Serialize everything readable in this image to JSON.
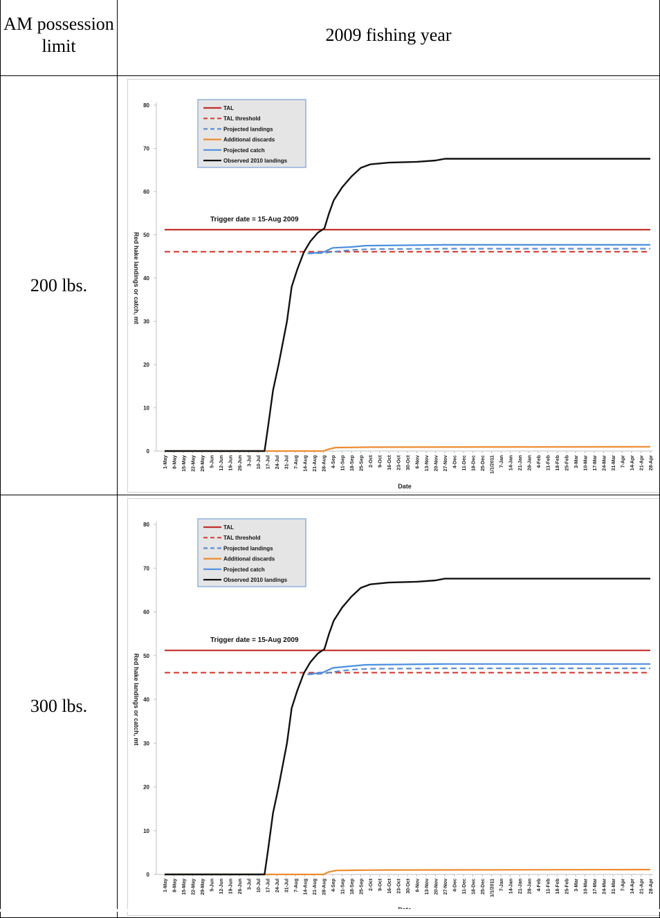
{
  "table": {
    "header_left": "AM possession limit",
    "header_right": "2009 fishing year",
    "rows": [
      {
        "label": "200 lbs."
      },
      {
        "label": "300 lbs."
      }
    ]
  },
  "colors": {
    "TAL": "#c0302a",
    "TAL threshold": "#d9433a",
    "Projected landings": "#5b8fd1",
    "Additional discards": "#ed8b2f",
    "Projected catch": "#4a8fe0",
    "Observed 2010 landings": "#111111"
  },
  "chart_data": [
    {
      "type": "line",
      "title": "",
      "annotation": "Trigger date = 15-Aug 2009",
      "xlabel": "Date",
      "ylabel": "Red hake landings or catch, mt",
      "ylim": [
        0,
        80
      ],
      "yticks": [
        0,
        10,
        20,
        30,
        40,
        50,
        60,
        70,
        80
      ],
      "grid": false,
      "legend_position": "top-left",
      "categories": [
        "1-May",
        "8-May",
        "15-May",
        "22-May",
        "29-May",
        "5-Jun",
        "12-Jun",
        "19-Jun",
        "26-Jun",
        "3-Jul",
        "10-Jul",
        "17-Jul",
        "24-Jul",
        "31-Jul",
        "7-Aug",
        "14-Aug",
        "21-Aug",
        "28-Aug",
        "4-Sep",
        "11-Sep",
        "18-Sep",
        "25-Sep",
        "2-Oct",
        "9-Oct",
        "16-Oct",
        "23-Oct",
        "30-Oct",
        "6-Nov",
        "13-Nov",
        "20-Nov",
        "27-Nov",
        "4-Dec",
        "11-Dec",
        "18-Dec",
        "25-Dec",
        "1/1/2011",
        "7-Jan",
        "14-Jan",
        "21-Jan",
        "28-Jan",
        "4-Feb",
        "11-Feb",
        "18-Feb",
        "25-Feb",
        "3-Mar",
        "10-Mar",
        "17-Mar",
        "24-Mar",
        "31-Mar",
        "7-Apr",
        "14-Apr",
        "21-Apr",
        "28-Apr"
      ],
      "series": [
        {
          "name": "TAL",
          "style": "solid",
          "points": [
            [
              0,
              51.2
            ],
            [
              52,
              51.2
            ]
          ]
        },
        {
          "name": "TAL threshold",
          "style": "dashed",
          "points": [
            [
              0,
              46.1
            ],
            [
              52,
              46.1
            ]
          ]
        },
        {
          "name": "Projected landings",
          "style": "dashed",
          "points": [
            [
              15.3,
              45.7
            ],
            [
              17,
              45.8
            ],
            [
              18.5,
              46.2
            ],
            [
              20,
              46.5
            ],
            [
              22,
              46.7
            ],
            [
              30,
              46.8
            ],
            [
              52,
              46.8
            ]
          ]
        },
        {
          "name": "Additional discards",
          "style": "solid",
          "points": [
            [
              0,
              0
            ],
            [
              17,
              0
            ],
            [
              17.5,
              0.4
            ],
            [
              18.3,
              0.8
            ],
            [
              22,
              0.9
            ],
            [
              52,
              1.0
            ]
          ]
        },
        {
          "name": "Projected catch",
          "style": "solid",
          "points": [
            [
              15.3,
              45.7
            ],
            [
              17,
              46.0
            ],
            [
              18,
              47.0
            ],
            [
              20,
              47.2
            ],
            [
              21.5,
              47.5
            ],
            [
              30,
              47.7
            ],
            [
              52,
              47.7
            ]
          ]
        },
        {
          "name": "Observed 2010 landings",
          "style": "solid",
          "points": [
            [
              0,
              0
            ],
            [
              10.7,
              0
            ],
            [
              11.1,
              6
            ],
            [
              11.6,
              14
            ],
            [
              12.2,
              20
            ],
            [
              13.1,
              30
            ],
            [
              13.6,
              38
            ],
            [
              14.2,
              42
            ],
            [
              14.9,
              46
            ],
            [
              15.6,
              48.5
            ],
            [
              16.4,
              50.5
            ],
            [
              17.1,
              51.5
            ],
            [
              17.6,
              55
            ],
            [
              18.1,
              58
            ],
            [
              19.0,
              61
            ],
            [
              20.0,
              63.5
            ],
            [
              21.0,
              65.5
            ],
            [
              22.0,
              66.3
            ],
            [
              24.0,
              66.7
            ],
            [
              27.0,
              66.9
            ],
            [
              29.0,
              67.2
            ],
            [
              30.0,
              67.6
            ],
            [
              52,
              67.6
            ]
          ]
        }
      ]
    },
    {
      "type": "line",
      "title": "",
      "annotation": "Trigger date = 15-Aug 2009",
      "xlabel": "Date",
      "ylabel": "Red hake landings or catch, mt",
      "ylim": [
        0,
        80
      ],
      "yticks": [
        0,
        10,
        20,
        30,
        40,
        50,
        60,
        70,
        80
      ],
      "grid": false,
      "legend_position": "top-left",
      "categories": [
        "1-May",
        "8-May",
        "15-May",
        "22-May",
        "29-May",
        "5-Jun",
        "12-Jun",
        "19-Jun",
        "26-Jun",
        "3-Jul",
        "10-Jul",
        "17-Jul",
        "24-Jul",
        "31-Jul",
        "7-Aug",
        "14-Aug",
        "21-Aug",
        "28-Aug",
        "4-Sep",
        "11-Sep",
        "18-Sep",
        "25-Sep",
        "2-Oct",
        "9-Oct",
        "16-Oct",
        "23-Oct",
        "30-Oct",
        "6-Nov",
        "13-Nov",
        "20-Nov",
        "27-Nov",
        "4-Dec",
        "11-Dec",
        "18-Dec",
        "25-Dec",
        "1/1/2011",
        "7-Jan",
        "14-Jan",
        "21-Jan",
        "28-Jan",
        "4-Feb",
        "11-Feb",
        "18-Feb",
        "25-Feb",
        "3-Mar",
        "10-Mar",
        "17-Mar",
        "24-Mar",
        "31-Mar",
        "7-Apr",
        "14-Apr",
        "21-Apr",
        "28-Apr"
      ],
      "series": [
        {
          "name": "TAL",
          "style": "solid",
          "points": [
            [
              0,
              51.2
            ],
            [
              52,
              51.2
            ]
          ]
        },
        {
          "name": "TAL threshold",
          "style": "dashed",
          "points": [
            [
              0,
              46.1
            ],
            [
              52,
              46.1
            ]
          ]
        },
        {
          "name": "Projected landings",
          "style": "dashed",
          "points": [
            [
              15.3,
              45.7
            ],
            [
              17,
              45.9
            ],
            [
              18.5,
              46.4
            ],
            [
              20,
              46.8
            ],
            [
              22,
              47.0
            ],
            [
              30,
              47.1
            ],
            [
              52,
              47.1
            ]
          ]
        },
        {
          "name": "Additional discards",
          "style": "solid",
          "points": [
            [
              0,
              0
            ],
            [
              17,
              0
            ],
            [
              17.5,
              0.5
            ],
            [
              18.3,
              0.9
            ],
            [
              22,
              1.0
            ],
            [
              52,
              1.1
            ]
          ]
        },
        {
          "name": "Projected catch",
          "style": "solid",
          "points": [
            [
              15.3,
              45.7
            ],
            [
              17,
              46.2
            ],
            [
              18,
              47.2
            ],
            [
              20,
              47.6
            ],
            [
              21.5,
              47.9
            ],
            [
              30,
              48.1
            ],
            [
              52,
              48.1
            ]
          ]
        },
        {
          "name": "Observed 2010 landings",
          "style": "solid",
          "points": [
            [
              0,
              0
            ],
            [
              10.7,
              0
            ],
            [
              11.1,
              6
            ],
            [
              11.6,
              14
            ],
            [
              12.2,
              20
            ],
            [
              13.1,
              30
            ],
            [
              13.6,
              38
            ],
            [
              14.2,
              42
            ],
            [
              14.9,
              46
            ],
            [
              15.6,
              48.5
            ],
            [
              16.4,
              50.5
            ],
            [
              17.1,
              51.5
            ],
            [
              17.6,
              55
            ],
            [
              18.1,
              58
            ],
            [
              19.0,
              61
            ],
            [
              20.0,
              63.5
            ],
            [
              21.0,
              65.5
            ],
            [
              22.0,
              66.3
            ],
            [
              24.0,
              66.7
            ],
            [
              27.0,
              66.9
            ],
            [
              29.0,
              67.2
            ],
            [
              30.0,
              67.6
            ],
            [
              52,
              67.6
            ]
          ]
        }
      ]
    }
  ]
}
